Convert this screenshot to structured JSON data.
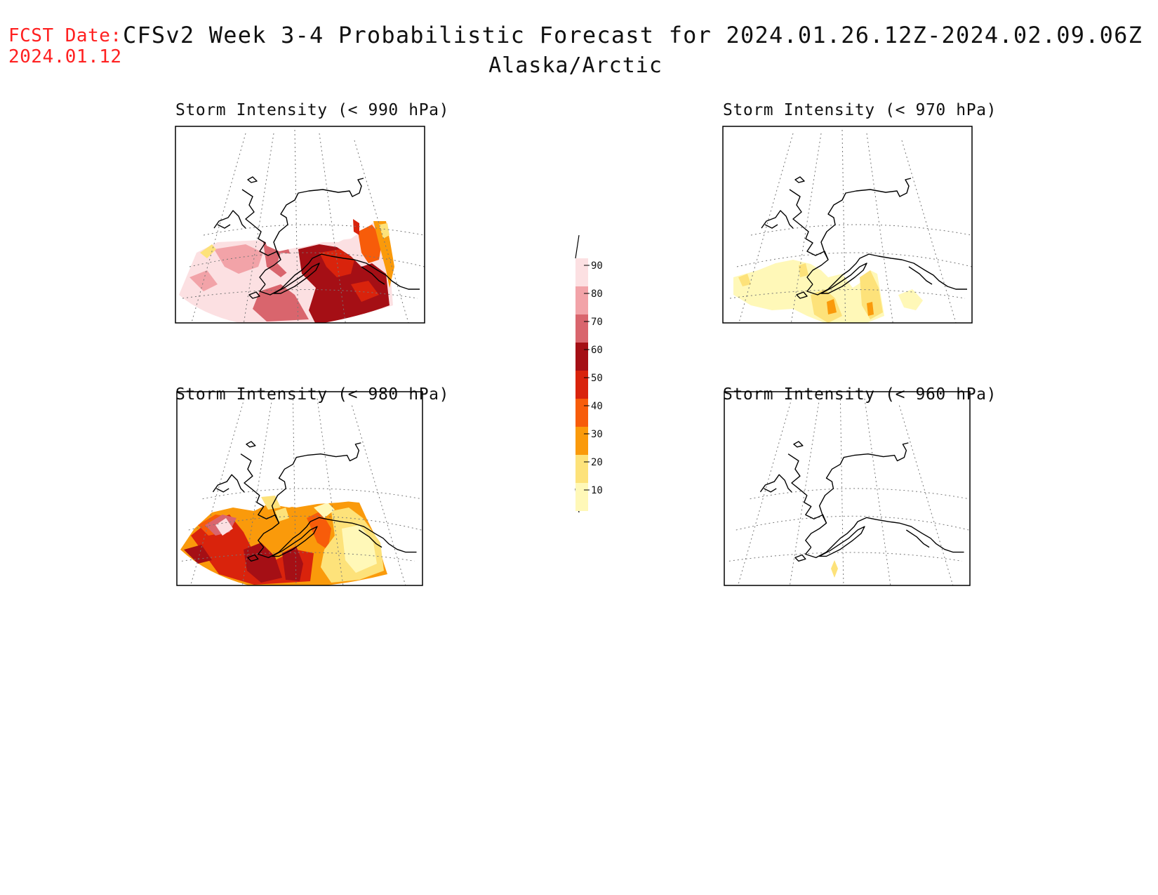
{
  "header": {
    "fcst_label": "FCST Date:",
    "fcst_date": "2024.01.12",
    "title": "CFSv2 Week 3-4 Probabilistic Forecast for 2024.01.26.12Z-2024.02.09.06Z",
    "region": "Alaska/Arctic"
  },
  "panels": [
    {
      "title": "Storm Intensity (< 990 hPa)"
    },
    {
      "title": "Storm Intensity (< 970 hPa)"
    },
    {
      "title": "Storm Intensity (< 980 hPa)"
    },
    {
      "title": "Storm Intensity (< 960 hPa)"
    }
  ],
  "colorbar": {
    "labels": [
      "90",
      "80",
      "70",
      "60",
      "50",
      "40",
      "30",
      "20",
      "10"
    ],
    "colors": [
      "#fce0e2",
      "#f2a3a8",
      "#d9656d",
      "#a50f15",
      "#d9230c",
      "#f75c0a",
      "#fa9a0b",
      "#fde27a",
      "#fff8b8"
    ]
  }
}
